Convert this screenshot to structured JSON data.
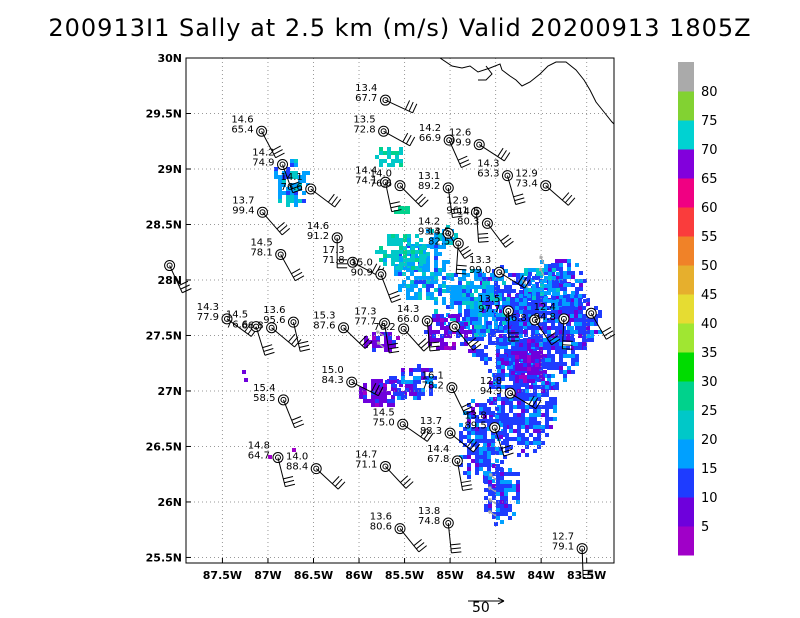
{
  "title": "200913I1 Sally at 2.5 km (m/s) Valid 20200913 1805Z",
  "x_ticks": [
    {
      "lon": -87.5,
      "label": "87.5W"
    },
    {
      "lon": -87.0,
      "label": "87W"
    },
    {
      "lon": -86.5,
      "label": "86.5W"
    },
    {
      "lon": -86.0,
      "label": "86W"
    },
    {
      "lon": -85.5,
      "label": "85.5W"
    },
    {
      "lon": -85.0,
      "label": "85W"
    },
    {
      "lon": -84.5,
      "label": "84.5W"
    },
    {
      "lon": -84.0,
      "label": "84W"
    },
    {
      "lon": -83.5,
      "label": "83.5W"
    }
  ],
  "y_ticks": [
    {
      "lat": 30.0,
      "label": "30N"
    },
    {
      "lat": 29.5,
      "label": "29.5N"
    },
    {
      "lat": 29.0,
      "label": "29N"
    },
    {
      "lat": 28.5,
      "label": "28.5N"
    },
    {
      "lat": 28.0,
      "label": "28N"
    },
    {
      "lat": 27.5,
      "label": "27.5N"
    },
    {
      "lat": 27.0,
      "label": "27N"
    },
    {
      "lat": 26.5,
      "label": "26.5N"
    },
    {
      "lat": 26.0,
      "label": "26N"
    },
    {
      "lat": 25.5,
      "label": "25.5N"
    }
  ],
  "colorbar": {
    "colors": [
      "#a000c8",
      "#6e00dc",
      "#1e3cff",
      "#00a0ff",
      "#00c8c8",
      "#00d28c",
      "#00dc00",
      "#a0e632",
      "#e6dc32",
      "#e6af2d",
      "#f08228",
      "#fa3c3c",
      "#f00082",
      "#8200dc",
      "#00d2d2",
      "#82d232",
      "#aaaaaa"
    ],
    "labels": [
      "5",
      "10",
      "15",
      "20",
      "25",
      "30",
      "35",
      "40",
      "45",
      "50",
      "55",
      "60",
      "65",
      "70",
      "75",
      "80"
    ]
  },
  "obs": [
    {
      "lon": -85.71,
      "lat": 29.62,
      "speed": "13.4",
      "dir": "67.7"
    },
    {
      "lon": -87.07,
      "lat": 29.34,
      "speed": "14.6",
      "dir": "65.4"
    },
    {
      "lon": -85.73,
      "lat": 29.34,
      "speed": "13.5",
      "dir": "72.8"
    },
    {
      "lon": -85.01,
      "lat": 29.26,
      "speed": "14.2",
      "dir": "66.9"
    },
    {
      "lon": -84.68,
      "lat": 29.22,
      "speed": "12.6",
      "dir": "79.9"
    },
    {
      "lon": -86.84,
      "lat": 29.04,
      "speed": "14.2",
      "dir": "74.9"
    },
    {
      "lon": -86.53,
      "lat": 28.82,
      "speed": "14.1",
      "dir": "76.6"
    },
    {
      "lon": -84.37,
      "lat": 28.94,
      "speed": "14.3",
      "dir": "63.3"
    },
    {
      "lon": -83.95,
      "lat": 28.85,
      "speed": "12.9",
      "dir": "73.4"
    },
    {
      "lon": -85.71,
      "lat": 28.88,
      "speed": "14.4",
      "dir": "74.1"
    },
    {
      "lon": -85.55,
      "lat": 28.85,
      "speed": "14.0",
      "dir": "76.6"
    },
    {
      "lon": -85.02,
      "lat": 28.83,
      "speed": "13.1",
      "dir": "89.2"
    },
    {
      "lon": -87.06,
      "lat": 28.61,
      "speed": "13.7",
      "dir": "99.4"
    },
    {
      "lon": -84.71,
      "lat": 28.61,
      "speed": "12.9",
      "dir": "96.1"
    },
    {
      "lon": -84.59,
      "lat": 28.51,
      "speed": "14.5",
      "dir": "80.3"
    },
    {
      "lon": -86.24,
      "lat": 28.38,
      "speed": "14.6",
      "dir": "91.2"
    },
    {
      "lon": -85.02,
      "lat": 28.42,
      "speed": "14.2",
      "dir": "93.4"
    },
    {
      "lon": -84.91,
      "lat": 28.33,
      "speed": "13.5",
      "dir": "82.5"
    },
    {
      "lon": -86.86,
      "lat": 28.23,
      "speed": "14.5",
      "dir": "78.1"
    },
    {
      "lon": -86.07,
      "lat": 28.16,
      "speed": "17.3",
      "dir": "71.8"
    },
    {
      "lon": -88.08,
      "lat": 28.13,
      "speed": "",
      "dir": ""
    },
    {
      "lon": -84.46,
      "lat": 28.07,
      "speed": "13.3",
      "dir": "99.0"
    },
    {
      "lon": -85.76,
      "lat": 28.05,
      "speed": "15.0",
      "dir": "90.9"
    },
    {
      "lon": -87.45,
      "lat": 27.65,
      "speed": "14.3",
      "dir": "77.9"
    },
    {
      "lon": -87.13,
      "lat": 27.58,
      "speed": "14.5",
      "dir": "76.6"
    },
    {
      "lon": -86.96,
      "lat": 27.57,
      "speed": "",
      "dir": "66.8"
    },
    {
      "lon": -86.72,
      "lat": 27.62,
      "speed": "13.6",
      "dir": "95.6"
    },
    {
      "lon": -86.17,
      "lat": 27.57,
      "speed": "15.3",
      "dir": "87.6"
    },
    {
      "lon": -85.72,
      "lat": 27.61,
      "speed": "17.3",
      "dir": "77.7"
    },
    {
      "lon": -85.51,
      "lat": 27.56,
      "speed": "",
      "dir": "76.2"
    },
    {
      "lon": -85.25,
      "lat": 27.63,
      "speed": "14.3",
      "dir": "66.0"
    },
    {
      "lon": -84.95,
      "lat": 27.58,
      "speed": "",
      "dir": ""
    },
    {
      "lon": -84.36,
      "lat": 27.72,
      "speed": "13.5",
      "dir": "97.7"
    },
    {
      "lon": -84.07,
      "lat": 27.64,
      "speed": "",
      "dir": "86.8"
    },
    {
      "lon": -83.75,
      "lat": 27.65,
      "speed": "12.4",
      "dir": "94.8"
    },
    {
      "lon": -83.45,
      "lat": 27.7,
      "speed": "",
      "dir": ""
    },
    {
      "lon": -86.08,
      "lat": 27.08,
      "speed": "15.0",
      "dir": "84.3"
    },
    {
      "lon": -84.98,
      "lat": 27.03,
      "speed": "16.1",
      "dir": "78.2"
    },
    {
      "lon": -84.34,
      "lat": 26.98,
      "speed": "12.8",
      "dir": "94.9"
    },
    {
      "lon": -86.83,
      "lat": 26.92,
      "speed": "15.4",
      "dir": "58.5"
    },
    {
      "lon": -85.52,
      "lat": 26.7,
      "speed": "14.5",
      "dir": "75.0"
    },
    {
      "lon": -84.51,
      "lat": 26.67,
      "speed": "13.8",
      "dir": "89.5"
    },
    {
      "lon": -85.0,
      "lat": 26.62,
      "speed": "13.7",
      "dir": "88.3"
    },
    {
      "lon": -86.89,
      "lat": 26.4,
      "speed": "14.8",
      "dir": "64.7"
    },
    {
      "lon": -86.47,
      "lat": 26.3,
      "speed": "14.0",
      "dir": "88.4"
    },
    {
      "lon": -84.92,
      "lat": 26.37,
      "speed": "14.4",
      "dir": "67.8"
    },
    {
      "lon": -85.71,
      "lat": 26.32,
      "speed": "14.7",
      "dir": "71.1"
    },
    {
      "lon": -85.02,
      "lat": 25.81,
      "speed": "13.8",
      "dir": "74.8"
    },
    {
      "lon": -85.55,
      "lat": 25.76,
      "speed": "13.6",
      "dir": "80.6"
    },
    {
      "lon": -83.55,
      "lat": 25.58,
      "speed": "12.7",
      "dir": "79.1"
    }
  ],
  "reference_vector_label": "50"
}
